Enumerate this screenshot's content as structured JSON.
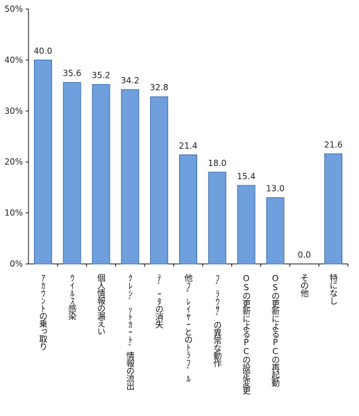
{
  "chart_data": {
    "type": "bar",
    "categories": [
      "ｱｶｳﾝﾄの乗っ取り",
      "ｳｲﾙｽ感染",
      "個人情報の漏えい",
      "ｸﾚｼﾞｯﾄｶｰﾄﾞ情報の流出",
      "ﾃﾞｰﾀの消失",
      "他ﾌﾟﾚｲﾔｰとのﾄﾗﾌﾞﾙ",
      "ﾌﾞﾗｳｻﾞの異常な動作",
      "OSの更新によるPCの設定変更",
      "OSの更新によるPCの再起動",
      "その他",
      "特になし"
    ],
    "values": [
      40.0,
      35.6,
      35.2,
      34.2,
      32.8,
      21.4,
      18.0,
      15.4,
      13.0,
      0.0,
      21.6
    ],
    "data_labels": [
      "40.0",
      "35.6",
      "35.2",
      "34.2",
      "32.8",
      "21.4",
      "18.0",
      "15.4",
      "13.0",
      "0.0",
      "21.6"
    ],
    "y_ticks": [
      "0%",
      "10%",
      "20%",
      "30%",
      "40%",
      "50%"
    ],
    "ylim": [
      0,
      50
    ],
    "grid": false,
    "bar_color": "#6f9fdc",
    "bar_edge_color": "#3f6fb0"
  }
}
